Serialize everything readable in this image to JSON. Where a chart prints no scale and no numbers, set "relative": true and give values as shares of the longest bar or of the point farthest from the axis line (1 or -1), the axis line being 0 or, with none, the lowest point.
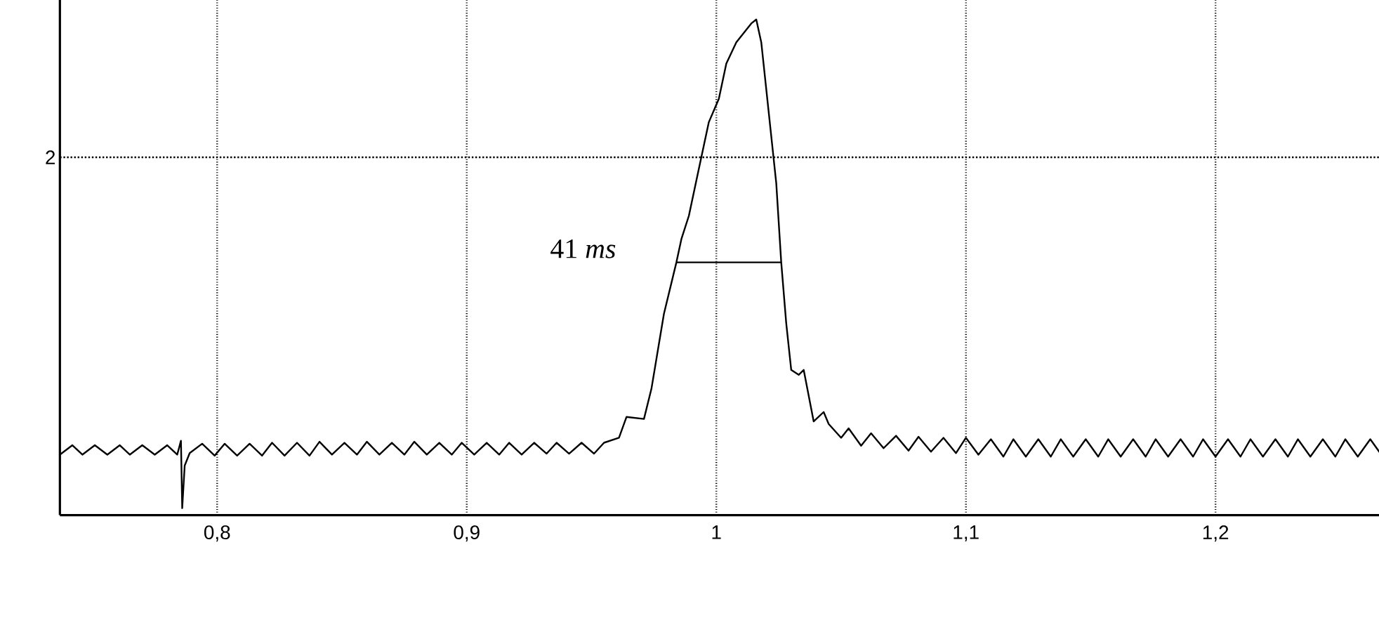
{
  "chart_data": {
    "type": "line",
    "relative": true,
    "xlim": [
      0.737,
      1.276
    ],
    "xticks": [
      {
        "value": 0.8,
        "label": "0,8"
      },
      {
        "value": 0.9,
        "label": "0,9"
      },
      1,
      {
        "value": 1.1,
        "label": "1,1"
      },
      {
        "value": 1.2,
        "label": "1,2"
      }
    ],
    "grid": "x",
    "marker": "none",
    "line_style": "solid",
    "ref_lines": [
      {
        "axis": "y",
        "value": 0.722,
        "line_style": "dotted"
      }
    ],
    "annotations": [
      "41 *ms*",
      "2"
    ],
    "series": [
      {
        "color": "#000000",
        "x": [
          0.737,
          0.742,
          0.746,
          0.751,
          0.756,
          0.761,
          0.765,
          0.77,
          0.775,
          0.78,
          0.784,
          0.7855,
          0.786,
          0.787,
          0.789,
          0.794,
          0.799,
          0.803,
          0.808,
          0.813,
          0.818,
          0.822,
          0.827,
          0.832,
          0.837,
          0.841,
          0.846,
          0.851,
          0.856,
          0.86,
          0.865,
          0.87,
          0.875,
          0.879,
          0.884,
          0.889,
          0.894,
          0.898,
          0.903,
          0.908,
          0.913,
          0.917,
          0.922,
          0.927,
          0.932,
          0.936,
          0.941,
          0.946,
          0.951,
          0.955,
          0.961,
          0.964,
          0.971,
          0.974,
          0.979,
          0.984,
          0.986,
          0.989,
          0.993,
          0.997,
          1.001,
          1.004,
          1.008,
          1.014,
          1.016,
          1.018,
          1.021,
          1.024,
          1.026,
          1.028,
          1.03,
          1.033,
          1.035,
          1.039,
          1.043,
          1.045,
          1.05,
          1.053,
          1.058,
          1.062,
          1.067,
          1.072,
          1.077,
          1.081,
          1.086,
          1.091,
          1.096,
          1.1,
          1.105,
          1.11,
          1.115,
          1.119,
          1.124,
          1.129,
          1.134,
          1.138,
          1.143,
          1.148,
          1.153,
          1.157,
          1.162,
          1.167,
          1.172,
          1.176,
          1.181,
          1.186,
          1.191,
          1.195,
          1.2,
          1.205,
          1.21,
          1.214,
          1.219,
          1.224,
          1.229,
          1.233,
          1.238,
          1.243,
          1.248,
          1.252,
          1.257,
          1.262,
          1.267
        ],
        "values": [
          0.122,
          0.141,
          0.122,
          0.141,
          0.122,
          0.141,
          0.122,
          0.141,
          0.122,
          0.141,
          0.122,
          0.15,
          0.014,
          0.1,
          0.125,
          0.144,
          0.12,
          0.144,
          0.12,
          0.144,
          0.12,
          0.146,
          0.12,
          0.146,
          0.12,
          0.148,
          0.122,
          0.146,
          0.122,
          0.148,
          0.122,
          0.146,
          0.122,
          0.148,
          0.122,
          0.146,
          0.122,
          0.146,
          0.122,
          0.146,
          0.122,
          0.146,
          0.122,
          0.146,
          0.124,
          0.146,
          0.124,
          0.146,
          0.124,
          0.146,
          0.156,
          0.198,
          0.194,
          0.255,
          0.406,
          0.51,
          0.557,
          0.604,
          0.699,
          0.793,
          0.84,
          0.911,
          0.954,
          0.992,
          1.0,
          0.954,
          0.812,
          0.67,
          0.51,
          0.387,
          0.293,
          0.283,
          0.293,
          0.189,
          0.208,
          0.184,
          0.156,
          0.175,
          0.14,
          0.165,
          0.135,
          0.16,
          0.13,
          0.158,
          0.128,
          0.156,
          0.125,
          0.156,
          0.122,
          0.153,
          0.118,
          0.153,
          0.118,
          0.153,
          0.118,
          0.153,
          0.118,
          0.153,
          0.118,
          0.153,
          0.118,
          0.153,
          0.118,
          0.153,
          0.118,
          0.153,
          0.118,
          0.153,
          0.118,
          0.153,
          0.118,
          0.153,
          0.118,
          0.153,
          0.118,
          0.153,
          0.118,
          0.153,
          0.118,
          0.153,
          0.118,
          0.153,
          0.118
        ]
      },
      {
        "color": "#000000",
        "x": [
          0.984,
          1.026
        ],
        "values": [
          0.51,
          0.51
        ]
      }
    ]
  }
}
